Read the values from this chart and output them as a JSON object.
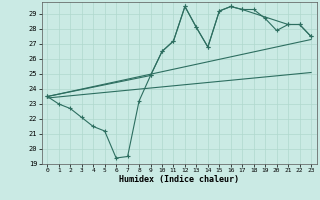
{
  "xlabel": "Humidex (Indice chaleur)",
  "xlim": [
    -0.5,
    23.5
  ],
  "ylim": [
    19,
    29.8
  ],
  "yticks": [
    19,
    20,
    21,
    22,
    23,
    24,
    25,
    26,
    27,
    28,
    29
  ],
  "xticks": [
    0,
    1,
    2,
    3,
    4,
    5,
    6,
    7,
    8,
    9,
    10,
    11,
    12,
    13,
    14,
    15,
    16,
    17,
    18,
    19,
    20,
    21,
    22,
    23
  ],
  "bg_color": "#caeae4",
  "line_color": "#2d6e60",
  "grid_color": "#b0d8ce",
  "main_x": [
    0,
    1,
    2,
    3,
    4,
    5,
    6,
    7,
    8,
    9,
    10,
    11,
    12,
    13,
    14,
    15,
    16,
    17,
    18,
    19,
    20,
    21,
    22,
    23
  ],
  "main_y": [
    23.5,
    23.0,
    22.7,
    22.1,
    21.5,
    21.2,
    19.4,
    19.5,
    23.2,
    24.9,
    26.5,
    27.2,
    29.5,
    28.1,
    26.8,
    29.2,
    29.5,
    29.3,
    29.3,
    28.7,
    27.9,
    28.3,
    28.3,
    27.5
  ],
  "upper_x": [
    0,
    9,
    10,
    11,
    12,
    13,
    14,
    15,
    16,
    17,
    21,
    22,
    23
  ],
  "upper_y": [
    23.5,
    24.9,
    26.5,
    27.2,
    29.5,
    28.1,
    26.8,
    29.2,
    29.5,
    29.3,
    28.3,
    28.3,
    27.5
  ],
  "trend1_x": [
    0,
    23
  ],
  "trend1_y": [
    23.5,
    27.3
  ],
  "trend2_x": [
    0,
    23
  ],
  "trend2_y": [
    23.4,
    25.1
  ]
}
